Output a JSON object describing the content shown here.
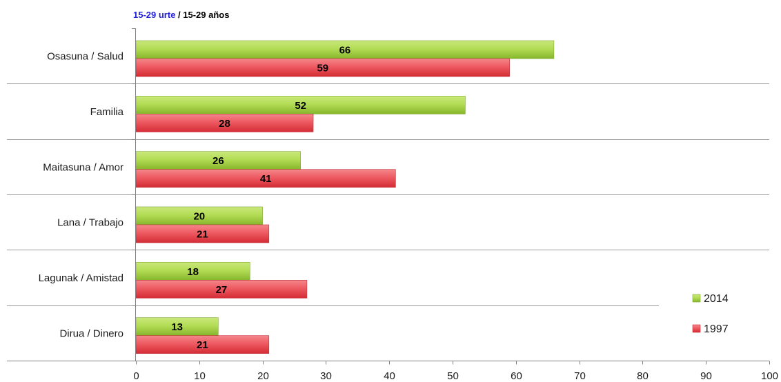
{
  "title": {
    "part1": "15-29 urte",
    "part2": " / 15-29 años"
  },
  "chart_data": {
    "type": "bar",
    "orientation": "horizontal",
    "categories": [
      "Osasuna / Salud",
      "Familia",
      "Maitasuna / Amor",
      "Lana / Trabajo",
      "Lagunak / Amistad",
      "Dirua / Dinero"
    ],
    "series": [
      {
        "name": "2014",
        "values": [
          66,
          52,
          26,
          20,
          18,
          13
        ],
        "color": "#9bcc3c"
      },
      {
        "name": "1997",
        "values": [
          59,
          28,
          41,
          21,
          27,
          21
        ],
        "color": "#e8404a"
      }
    ],
    "xlim": [
      0,
      100
    ],
    "xticks": [
      "0",
      "10",
      "20",
      "30",
      "40",
      "50",
      "60",
      "70",
      "80",
      "90",
      "100"
    ],
    "xlabel": "",
    "ylabel": "",
    "grid": "horizontal separators between categories",
    "legend": "bottom-right",
    "data_labels": true
  }
}
